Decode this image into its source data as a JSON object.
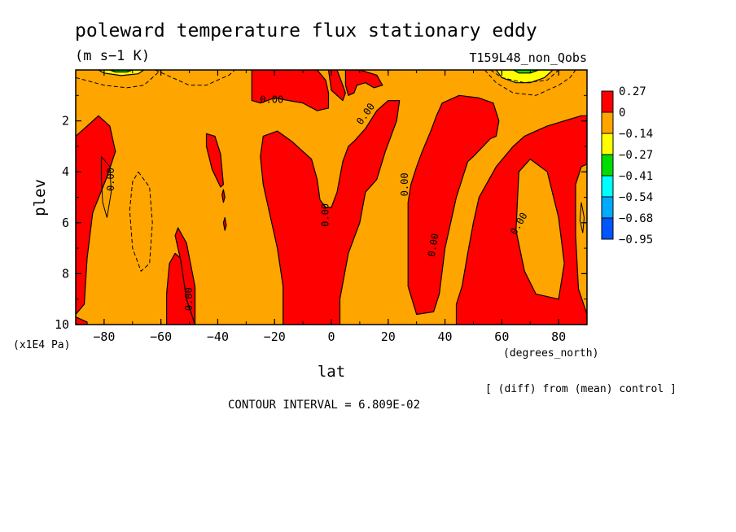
{
  "chart_data": {
    "type": "heatmap",
    "title": "poleward temperature flux stationary eddy",
    "units": "(m s−1 K)",
    "run_label": "T159L48_non_Qobs",
    "xlabel": "lat",
    "x_units": "(degrees_north)",
    "ylabel": "plev",
    "y_units": "(x1E4 Pa)",
    "xlim": [
      -90,
      90
    ],
    "ylim": [
      10,
      0
    ],
    "x_ticks": [
      -80,
      -60,
      -40,
      -20,
      0,
      20,
      40,
      60,
      80
    ],
    "x_tick_labels": [
      "−80",
      "−60",
      "−40",
      "−20",
      "0",
      "20",
      "40",
      "60",
      "80"
    ],
    "y_ticks": [
      2,
      4,
      6,
      8,
      10
    ],
    "y_tick_labels": [
      "2",
      "4",
      "6",
      "8",
      "10"
    ],
    "contour_label": "0.00",
    "diff_note": "[ (diff) from (mean) control ]",
    "contour_interval_text": "CONTOUR INTERVAL = 6.809E-02",
    "background_color": "#ffa500",
    "legend": {
      "placement": "right",
      "levels": [
        "0.27",
        "0",
        "−0.14",
        "−0.27",
        "−0.41",
        "−0.54",
        "−0.68",
        "−0.95"
      ],
      "colors": [
        "#ff0000",
        "#ffa500",
        "#ffff00",
        "#00dd00",
        "#00ffff",
        "#00aaff",
        "#0055ff"
      ]
    },
    "regions": [
      {
        "color": "#ff0000",
        "points": [
          [
            -90,
            2.6
          ],
          [
            -86,
            2.2
          ],
          [
            -82,
            1.8
          ],
          [
            -78,
            2.2
          ],
          [
            -76,
            3.2
          ],
          [
            -79,
            4.2
          ],
          [
            -84,
            5.6
          ],
          [
            -86,
            7.4
          ],
          [
            -87,
            9.2
          ],
          [
            -90,
            9.6
          ]
        ]
      },
      {
        "color": "#ff0000",
        "points": [
          [
            -90,
            9.7
          ],
          [
            -86,
            9.9
          ],
          [
            -86,
            10
          ],
          [
            -90,
            10
          ]
        ]
      },
      {
        "color": "#ff0000",
        "points": [
          [
            -58,
            10
          ],
          [
            -58,
            8.8
          ],
          [
            -57,
            7.6
          ],
          [
            -55,
            7.2
          ],
          [
            -51,
            7.6
          ],
          [
            -48,
            8.6
          ],
          [
            -48,
            10
          ]
        ]
      },
      {
        "color": "#ff0000",
        "points": [
          [
            -48,
            10
          ],
          [
            -51,
            9.0
          ],
          [
            -53,
            7.5
          ],
          [
            -55,
            6.5
          ],
          [
            -54,
            6.2
          ],
          [
            -51,
            6.8
          ],
          [
            -48,
            8.5
          ],
          [
            -48,
            10
          ]
        ]
      },
      {
        "color": "#ff0000",
        "points": [
          [
            -44,
            2.5
          ],
          [
            -41,
            2.6
          ],
          [
            -39,
            3.3
          ],
          [
            -38,
            4.5
          ],
          [
            -39,
            4.6
          ],
          [
            -42,
            3.9
          ],
          [
            -44,
            3.0
          ]
        ]
      },
      {
        "color": "#ff0000",
        "points": [
          [
            -38,
            4.7
          ],
          [
            -37.5,
            5.0
          ],
          [
            -38,
            5.2
          ],
          [
            -38.5,
            4.9
          ]
        ]
      },
      {
        "color": "#ff0000",
        "points": [
          [
            -37.5,
            5.8
          ],
          [
            -37,
            6.1
          ],
          [
            -37.5,
            6.3
          ],
          [
            -38,
            6.0
          ]
        ]
      },
      {
        "color": "#ff0000",
        "points": [
          [
            -28,
            0
          ],
          [
            -5,
            0
          ],
          [
            -2,
            0.4
          ],
          [
            -1,
            0.9
          ],
          [
            -1,
            1.5
          ],
          [
            -5,
            1.6
          ],
          [
            -10,
            1.3
          ],
          [
            -15,
            1.2
          ],
          [
            -20,
            1.1
          ],
          [
            -25,
            1.3
          ],
          [
            -28,
            1.2
          ]
        ]
      },
      {
        "color": "#ff0000",
        "points": [
          [
            -1,
            0
          ],
          [
            2,
            0
          ],
          [
            4,
            0.6
          ],
          [
            5,
            0.9
          ],
          [
            4,
            1.2
          ],
          [
            2,
            1.0
          ],
          [
            0,
            0.8
          ]
        ]
      },
      {
        "color": "#ff0000",
        "points": [
          [
            5,
            0
          ],
          [
            10,
            0
          ],
          [
            16,
            0.2
          ],
          [
            18,
            0.6
          ],
          [
            15,
            0.7
          ],
          [
            12,
            0.5
          ],
          [
            9,
            0.6
          ],
          [
            8,
            0.9
          ],
          [
            6,
            1.0
          ],
          [
            5,
            0.6
          ]
        ]
      },
      {
        "color": "#ff0000",
        "points": [
          [
            -24,
            2.6
          ],
          [
            -19,
            2.4
          ],
          [
            -14,
            2.8
          ],
          [
            -10,
            3.2
          ],
          [
            -7,
            3.5
          ],
          [
            -5,
            4.3
          ],
          [
            -4,
            5.1
          ],
          [
            -2,
            5.4
          ],
          [
            0,
            5.4
          ],
          [
            2,
            4.8
          ],
          [
            4,
            3.6
          ],
          [
            6,
            3.0
          ],
          [
            8,
            2.8
          ],
          [
            12,
            2.3
          ],
          [
            16,
            1.6
          ],
          [
            20,
            1.2
          ],
          [
            24,
            1.2
          ],
          [
            23,
            2.0
          ],
          [
            19,
            3.2
          ],
          [
            16,
            4.3
          ],
          [
            12,
            4.8
          ],
          [
            10,
            6.0
          ],
          [
            6,
            7.2
          ],
          [
            3,
            9.0
          ],
          [
            3,
            10
          ],
          [
            -17,
            10
          ],
          [
            -17,
            8.5
          ],
          [
            -19,
            7.0
          ],
          [
            -21,
            6.0
          ],
          [
            -24,
            4.5
          ],
          [
            -25,
            3.4
          ]
        ]
      },
      {
        "color": "#ff0000",
        "points": [
          [
            39,
            1.3
          ],
          [
            45,
            1.0
          ],
          [
            52,
            1.1
          ],
          [
            57,
            1.3
          ],
          [
            59,
            2.0
          ],
          [
            58,
            2.6
          ],
          [
            56,
            2.7
          ],
          [
            50,
            3.4
          ],
          [
            48,
            3.6
          ],
          [
            44,
            5.0
          ],
          [
            40,
            7.0
          ],
          [
            38,
            8.8
          ],
          [
            36,
            9.5
          ],
          [
            30,
            9.6
          ],
          [
            27,
            8.5
          ],
          [
            27,
            6.5
          ],
          [
            27,
            5.2
          ],
          [
            28,
            4.5
          ],
          [
            30,
            3.8
          ],
          [
            32,
            3.2
          ],
          [
            35,
            2.4
          ],
          [
            37,
            1.8
          ]
        ]
      },
      {
        "color": "#ff0000",
        "points": [
          [
            44,
            10
          ],
          [
            44,
            9.2
          ],
          [
            46,
            8.5
          ],
          [
            48,
            7.2
          ],
          [
            50,
            6.0
          ],
          [
            52,
            5.0
          ],
          [
            58,
            3.8
          ],
          [
            64,
            3.0
          ],
          [
            68,
            2.6
          ],
          [
            72,
            2.4
          ],
          [
            76,
            2.2
          ],
          [
            82,
            2.0
          ],
          [
            88,
            1.8
          ],
          [
            90,
            1.8
          ],
          [
            90,
            10
          ]
        ]
      },
      {
        "color": "#ffa500",
        "points": [
          [
            66,
            4.0
          ],
          [
            70,
            3.5
          ],
          [
            76,
            4.0
          ],
          [
            80,
            5.8
          ],
          [
            82,
            7.6
          ],
          [
            80,
            9.0
          ],
          [
            72,
            8.8
          ],
          [
            68,
            7.9
          ],
          [
            65,
            6.3
          ]
        ]
      },
      {
        "color": "#ffa500",
        "points": [
          [
            88,
            3.8
          ],
          [
            90,
            3.7
          ],
          [
            90,
            9.6
          ],
          [
            87,
            8.6
          ],
          [
            86,
            6.5
          ],
          [
            86,
            4.5
          ]
        ]
      },
      {
        "color": "#ffff00",
        "points": [
          [
            58,
            0
          ],
          [
            78,
            0
          ],
          [
            75,
            0.3
          ],
          [
            70,
            0.5
          ],
          [
            65,
            0.5
          ],
          [
            60,
            0.3
          ]
        ]
      },
      {
        "color": "#00dd00",
        "points": [
          [
            64,
            0
          ],
          [
            73,
            0
          ],
          [
            70,
            0.12
          ],
          [
            66,
            0.12
          ]
        ]
      },
      {
        "color": "#ffff00",
        "points": [
          [
            -82,
            0
          ],
          [
            -66,
            0
          ],
          [
            -68,
            0.15
          ],
          [
            -74,
            0.22
          ],
          [
            -80,
            0.12
          ]
        ]
      },
      {
        "color": "#00dd00",
        "points": [
          [
            -78,
            0
          ],
          [
            -70,
            0
          ],
          [
            -72,
            0.08
          ],
          [
            -76,
            0.08
          ]
        ]
      }
    ],
    "dashed_contours": [
      {
        "points": [
          [
            -90,
            0.3
          ],
          [
            -80,
            0.6
          ],
          [
            -72,
            0.7
          ],
          [
            -66,
            0.6
          ],
          [
            -62,
            0.2
          ],
          [
            -60,
            0
          ]
        ]
      },
      {
        "points": [
          [
            -62,
            0
          ],
          [
            -56,
            0.3
          ],
          [
            -50,
            0.6
          ],
          [
            -44,
            0.6
          ],
          [
            -40,
            0.4
          ],
          [
            -36,
            0.2
          ],
          [
            -34,
            0
          ]
        ]
      },
      {
        "points": [
          [
            -68,
            4.0
          ],
          [
            -64,
            4.6
          ],
          [
            -63,
            6.0
          ],
          [
            -64,
            7.6
          ],
          [
            -67,
            7.9
          ],
          [
            -70,
            7.0
          ],
          [
            -71,
            5.5
          ],
          [
            -70,
            4.4
          ],
          [
            -68,
            4.0
          ]
        ]
      },
      {
        "points": [
          [
            54,
            0
          ],
          [
            58,
            0.5
          ],
          [
            64,
            0.9
          ],
          [
            72,
            1.0
          ],
          [
            80,
            0.6
          ],
          [
            84,
            0.3
          ],
          [
            86,
            0
          ]
        ]
      },
      {
        "points": [
          [
            56,
            0
          ],
          [
            60,
            0.3
          ],
          [
            68,
            0.5
          ],
          [
            76,
            0.4
          ],
          [
            80,
            0
          ]
        ]
      }
    ],
    "solid_contours": [
      {
        "points": [
          [
            -81,
            3.4
          ],
          [
            -78,
            3.8
          ],
          [
            -77.5,
            4.8
          ],
          [
            -79,
            5.8
          ],
          [
            -80.5,
            5.2
          ],
          [
            -81,
            4.2
          ],
          [
            -81,
            3.4
          ]
        ]
      },
      {
        "points": [
          [
            88,
            5.2
          ],
          [
            89,
            5.8
          ],
          [
            88.5,
            6.4
          ],
          [
            87.5,
            5.9
          ],
          [
            88,
            5.2
          ]
        ]
      }
    ],
    "contour_text_labels": [
      {
        "x": -76.5,
        "y": 4.3,
        "rot": -90
      },
      {
        "x": -49,
        "y": 9.0,
        "rot": -90
      },
      {
        "x": -21,
        "y": 1.3,
        "rot": 0
      },
      {
        "x": 13,
        "y": 1.8,
        "rot": -55
      },
      {
        "x": -1,
        "y": 5.7,
        "rot": -90
      },
      {
        "x": 27,
        "y": 4.5,
        "rot": -90
      },
      {
        "x": 37,
        "y": 6.9,
        "rot": -80
      },
      {
        "x": 67,
        "y": 6.1,
        "rot": -60
      }
    ]
  }
}
